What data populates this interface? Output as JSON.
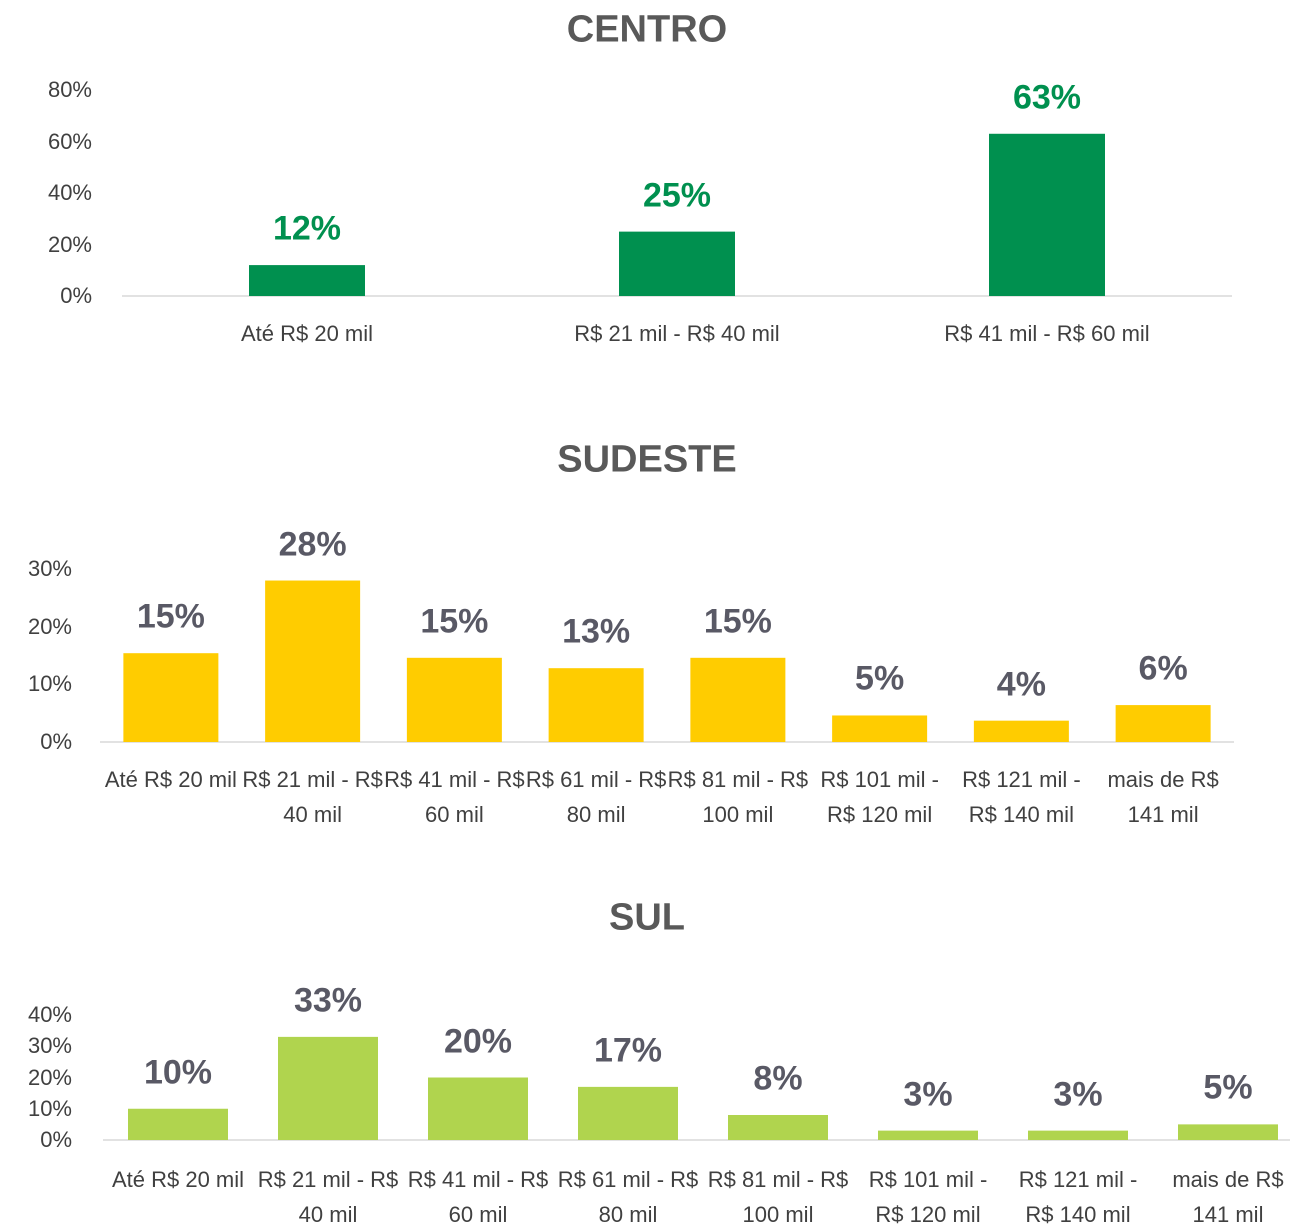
{
  "chart_data": [
    {
      "type": "bar",
      "title": "CENTRO",
      "categories": [
        "Até R$ 20 mil",
        "R$ 21 mil - R$ 40 mil",
        "R$ 41 mil - R$ 60 mil"
      ],
      "values": [
        12,
        25,
        63
      ],
      "value_labels": [
        "12%",
        "25%",
        "63%"
      ],
      "color": "#00904f",
      "label_color": "#00904f",
      "ylim": [
        0,
        80
      ],
      "yticks": [
        {
          "value": 0,
          "label": "0%"
        },
        {
          "value": 20,
          "label": "20%"
        },
        {
          "value": 40,
          "label": "40%"
        },
        {
          "value": 60,
          "label": "60%"
        },
        {
          "value": 80,
          "label": "80%"
        }
      ],
      "grid": false
    },
    {
      "type": "bar",
      "title": "SUDESTE",
      "categories": [
        "Até R$ 20 mil",
        "R$ 21 mil - R$ 40 mil",
        "R$ 41 mil - R$ 60 mil",
        "R$ 61 mil - R$ 80 mil",
        "R$ 81 mil - R$ 100 mil",
        "R$ 101 mil - R$ 120 mil",
        "R$ 121 mil - R$ 140 mil",
        "mais de R$ 141 mil"
      ],
      "values": [
        15.4,
        28,
        14.6,
        12.8,
        14.6,
        4.6,
        3.7,
        6.4
      ],
      "value_labels": [
        "15%",
        "28%",
        "15%",
        "13%",
        "15%",
        "5%",
        "4%",
        "6%"
      ],
      "color": "#ffcc00",
      "label_color": "#595965",
      "ylim": [
        0,
        30
      ],
      "yticks": [
        {
          "value": 0,
          "label": "0%"
        },
        {
          "value": 10,
          "label": "10%"
        },
        {
          "value": 20,
          "label": "20%"
        },
        {
          "value": 30,
          "label": "30%"
        }
      ],
      "grid": false
    },
    {
      "type": "bar",
      "title": "SUL",
      "categories": [
        "Até R$ 20 mil",
        "R$ 21 mil - R$ 40 mil",
        "R$ 41 mil - R$ 60 mil",
        "R$ 61 mil - R$ 80 mil",
        "R$ 81 mil - R$ 100 mil",
        "R$ 101 mil - R$ 120 mil",
        "R$ 121 mil - R$ 140 mil",
        "mais de R$ 141 mil"
      ],
      "values": [
        10,
        33,
        20,
        17,
        8,
        3,
        3,
        5
      ],
      "value_labels": [
        "10%",
        "33%",
        "20%",
        "17%",
        "8%",
        "3%",
        "3%",
        "5%"
      ],
      "color": "#b0d44e",
      "label_color": "#595965",
      "ylim": [
        0,
        40
      ],
      "yticks": [
        {
          "value": 0,
          "label": "0%"
        },
        {
          "value": 10,
          "label": "10%"
        },
        {
          "value": 20,
          "label": "20%"
        },
        {
          "value": 30,
          "label": "30%"
        },
        {
          "value": 40,
          "label": "40%"
        }
      ],
      "grid": false
    }
  ]
}
